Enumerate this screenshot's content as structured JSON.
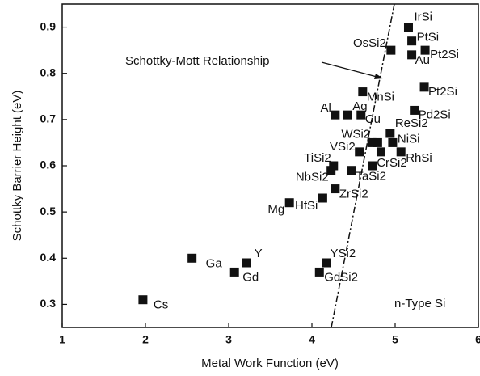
{
  "chart_data": {
    "type": "scatter",
    "xlabel": "Metal Work Function (eV)",
    "ylabel": "Schottky Barrier Height (eV)",
    "annotations": [
      "Schottky-Mott Relationship",
      "n-Type Si"
    ],
    "xlim": [
      1,
      6
    ],
    "ylim": [
      0.25,
      0.95
    ],
    "xticks": [
      1,
      2,
      3,
      4,
      5,
      6
    ],
    "yticks": [
      0.3,
      0.4,
      0.5,
      0.6,
      0.7,
      0.8,
      0.9
    ],
    "grid": false,
    "series": [
      {
        "color": "#111111",
        "labels": [
          "Cs",
          "Ga",
          "Gd",
          "Y",
          "Mg",
          "HfSi",
          "ZrSi2",
          "NbSi2",
          "TiSi2",
          "TaSi2",
          "YSi2",
          "GdSi2",
          "VSi2",
          "WSi2",
          null,
          "CrSi2",
          null,
          "NiSi",
          "ReSi2",
          "RhSi",
          "Al",
          "Ag",
          "Cu",
          "MnSi",
          "OsSi2",
          "IrSi",
          "PtSi",
          "Au",
          "Pt2Si",
          "Pt2Si",
          "Pd2Si"
        ],
        "x": [
          1.97,
          2.56,
          3.07,
          3.21,
          3.73,
          4.13,
          4.28,
          4.23,
          4.26,
          4.48,
          4.17,
          4.09,
          4.57,
          4.72,
          4.79,
          4.73,
          4.83,
          4.97,
          4.94,
          5.07,
          4.28,
          4.43,
          4.59,
          4.61,
          4.95,
          5.16,
          5.2,
          5.2,
          5.36,
          5.35,
          5.23
        ],
        "values": [
          0.31,
          0.4,
          0.37,
          0.39,
          0.52,
          0.53,
          0.55,
          0.59,
          0.6,
          0.59,
          0.39,
          0.37,
          0.63,
          0.65,
          0.65,
          0.6,
          0.63,
          0.65,
          0.67,
          0.63,
          0.71,
          0.71,
          0.71,
          0.76,
          0.85,
          0.9,
          0.87,
          0.84,
          0.85,
          0.77,
          0.72
        ]
      }
    ]
  }
}
